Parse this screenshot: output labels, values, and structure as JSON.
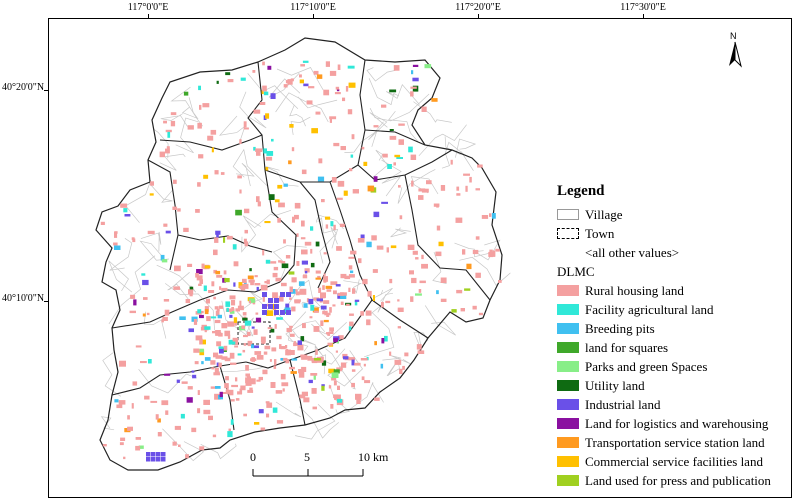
{
  "coordinates": {
    "longitude_labels": [
      "117°0'0\"E",
      "117°10'0\"E",
      "117°20'0\"E",
      "117°30'0\"E"
    ],
    "latitude_labels": [
      "40°20'0\"N",
      "40°10'0\"N"
    ]
  },
  "north_arrow": {
    "label": "N",
    "icon": "north-arrow-icon"
  },
  "scale_bar": {
    "labels": [
      "0",
      "5",
      "10 km"
    ]
  },
  "legend": {
    "title": "Legend",
    "village_label": "Village",
    "town_label": "Town",
    "other_values_label": "<all other values>",
    "field_label": "DLMC",
    "categories": [
      {
        "label": "Rural housing land",
        "color": "#f4a0a0"
      },
      {
        "label": "Facility agricultural land",
        "color": "#30e8d8"
      },
      {
        "label": "Breeding pits",
        "color": "#40c0f0"
      },
      {
        "label": "land for squares",
        "color": "#3fa82a"
      },
      {
        "label": "Parks and green Spaces",
        "color": "#88ee88"
      },
      {
        "label": "Utility land",
        "color": "#0f6b12"
      },
      {
        "label": "Industrial land",
        "color": "#6a50e8"
      },
      {
        "label": "Land for logistics and warehousing",
        "color": "#8a10a0"
      },
      {
        "label": "Transportation service station land",
        "color": "#ff9a20"
      },
      {
        "label": "Commercial service facilities land",
        "color": "#ffc000"
      },
      {
        "label": "Land used for press and publication",
        "color": "#a0d020"
      }
    ]
  }
}
